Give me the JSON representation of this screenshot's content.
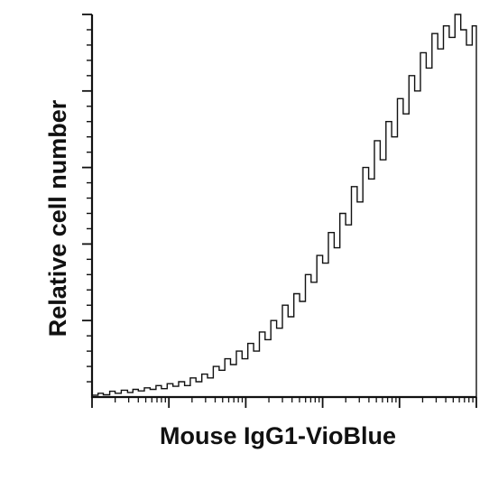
{
  "chart_data": {
    "type": "area",
    "title": "",
    "xlabel": "Mouse IgG1-VioBlue",
    "ylabel": "Relative cell number",
    "x_scale": "log",
    "xlim": [
      1,
      100000
    ],
    "ylim": [
      0,
      100
    ],
    "x_major_ticks": [
      1,
      10,
      100,
      1000,
      10000,
      100000
    ],
    "y_major_ticks": [
      20,
      40,
      60,
      80,
      100
    ],
    "y_minor_per_major": 4,
    "grid": false,
    "legend": "none",
    "tick_labels_shown": false,
    "line_color": "#111111",
    "series": [
      {
        "x": [
          1,
          1.2,
          1.4,
          1.7,
          2,
          2.4,
          2.9,
          3.4,
          4,
          4.8,
          5.7,
          6.8,
          8,
          9.5,
          11.3,
          13.4,
          16,
          19,
          22.5,
          26.8,
          31.8,
          37.8,
          45,
          53.4,
          63.4,
          75.4,
          89.6,
          106.4,
          126.4,
          150.2,
          178.5,
          212,
          251.9,
          299.3,
          355.6,
          422.5,
          502,
          596.4,
          708.5,
          841.8,
          1000.2,
          1188.3,
          1411.8,
          1677.5,
          1993,
          2367.8,
          2813.3,
          3342.4,
          3971.1,
          4718.1,
          5605.6,
          6660.1,
          7912.8,
          9401.2,
          11169.6,
          13270.7,
          15766.9,
          18732.7,
          22256.4,
          26443,
          31417,
          37326.6,
          44347.9,
          52689.9,
          62601,
          74376.5,
          88367.1,
          100000
        ],
        "y": [
          0.5,
          1,
          0.6,
          1.5,
          1,
          1.8,
          1.2,
          2,
          1.6,
          2.4,
          2,
          3,
          2.2,
          3.5,
          2.8,
          4,
          3,
          5,
          4,
          6,
          5,
          8,
          7,
          10,
          8.5,
          12,
          10,
          14,
          12,
          17,
          15,
          20,
          18,
          24,
          21,
          27,
          25,
          32,
          30,
          37,
          35,
          43,
          39,
          48,
          45,
          55,
          51,
          60,
          57,
          67,
          62,
          72,
          68,
          78,
          74,
          84,
          80,
          90,
          86,
          95,
          91,
          97,
          94,
          100,
          96,
          92,
          97,
          89
        ]
      }
    ]
  }
}
